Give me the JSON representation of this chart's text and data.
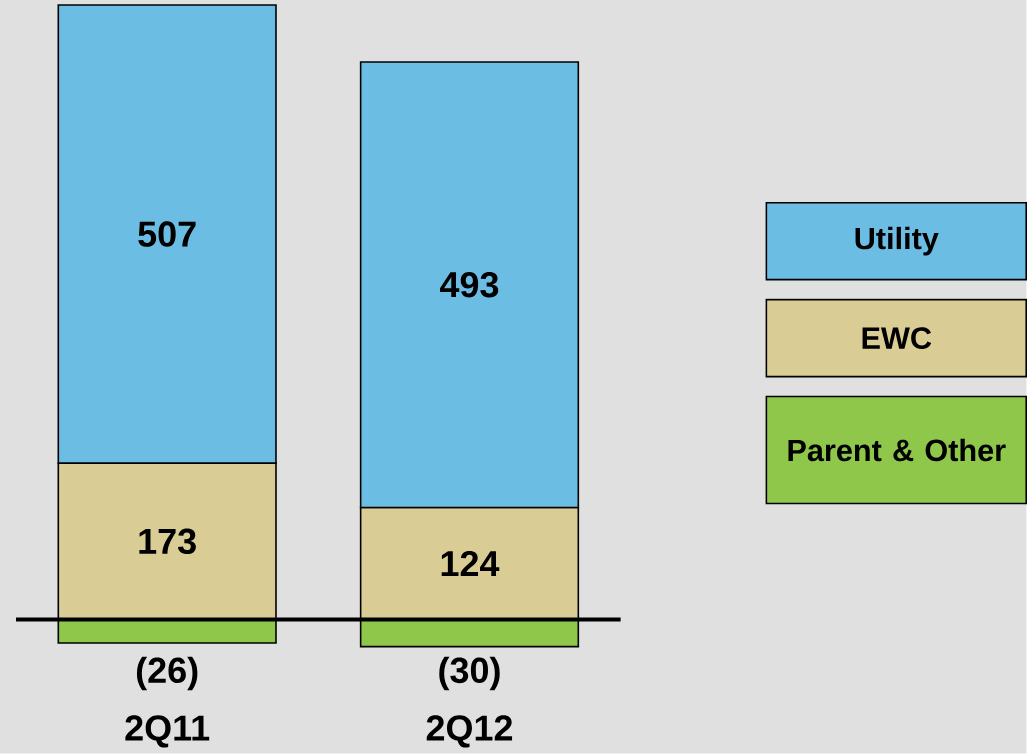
{
  "chart_data": {
    "type": "bar",
    "stacked": true,
    "categories": [
      "2Q11",
      "2Q12"
    ],
    "series": [
      {
        "name": "EWC",
        "color": "#d9cc95",
        "values": [
          173,
          124
        ],
        "value_labels": [
          "173",
          "124"
        ]
      },
      {
        "name": "Utility",
        "color": "#6cbde3",
        "values": [
          507,
          493
        ],
        "value_labels": [
          "507",
          "493"
        ]
      },
      {
        "name": "Parent & Other",
        "color": "#8fc74a",
        "values": [
          -26,
          -30
        ],
        "value_labels": [
          "(26)",
          "(30)"
        ]
      }
    ],
    "legend": "right"
  }
}
